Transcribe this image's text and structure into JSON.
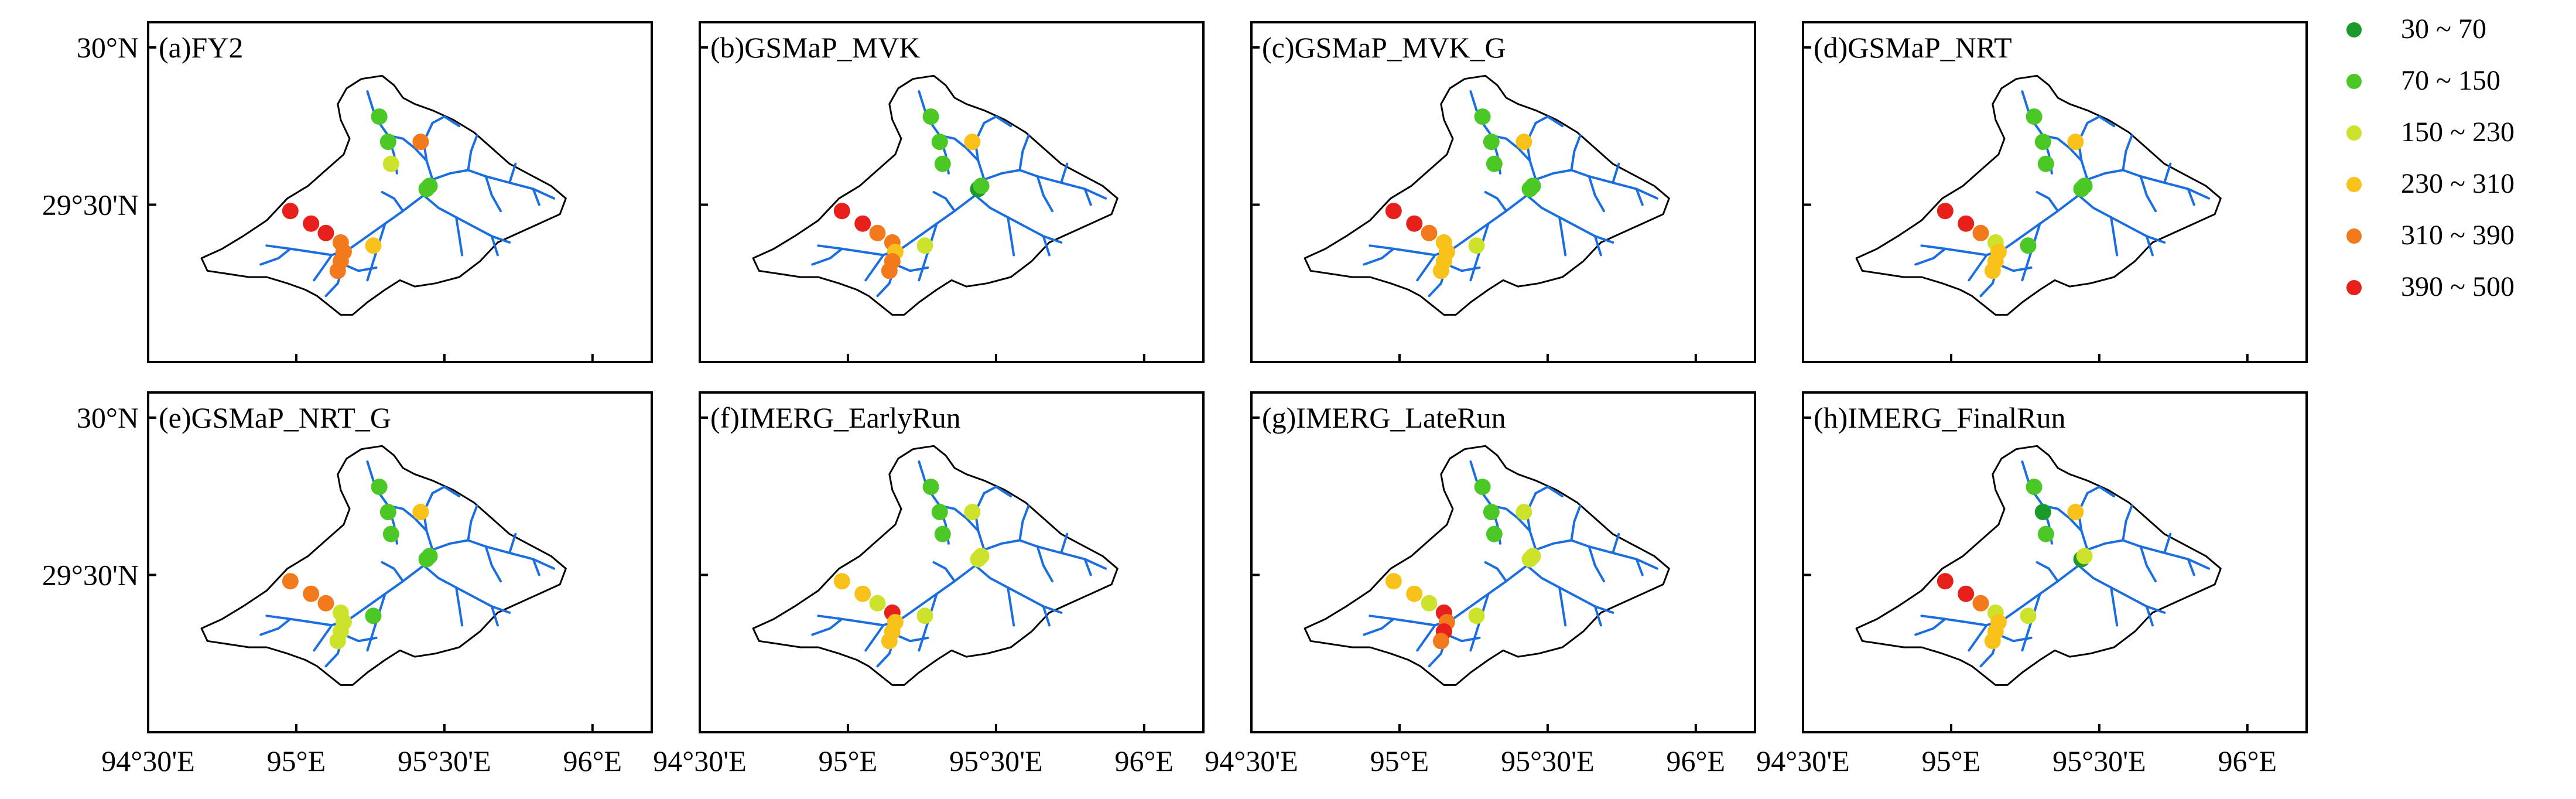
{
  "panels": [
    {
      "label": "(a)FY2",
      "dots": [
        {
          "lon": 95.28,
          "lat": 29.78,
          "cls": 1
        },
        {
          "lon": 95.31,
          "lat": 29.7,
          "cls": 1
        },
        {
          "lon": 95.42,
          "lat": 29.7,
          "cls": 4
        },
        {
          "lon": 95.32,
          "lat": 29.63,
          "cls": 2
        },
        {
          "lon": 95.44,
          "lat": 29.55,
          "cls": 1
        },
        {
          "lon": 95.45,
          "lat": 29.56,
          "cls": 1
        },
        {
          "lon": 94.98,
          "lat": 29.48,
          "cls": 5
        },
        {
          "lon": 95.05,
          "lat": 29.44,
          "cls": 5
        },
        {
          "lon": 95.1,
          "lat": 29.41,
          "cls": 5
        },
        {
          "lon": 95.15,
          "lat": 29.38,
          "cls": 4
        },
        {
          "lon": 95.16,
          "lat": 29.35,
          "cls": 4
        },
        {
          "lon": 95.15,
          "lat": 29.32,
          "cls": 4
        },
        {
          "lon": 95.14,
          "lat": 29.29,
          "cls": 4
        },
        {
          "lon": 95.26,
          "lat": 29.37,
          "cls": 3
        }
      ]
    },
    {
      "label": "(b)GSMaP_MVK",
      "dots": [
        {
          "lon": 95.28,
          "lat": 29.78,
          "cls": 1
        },
        {
          "lon": 95.31,
          "lat": 29.7,
          "cls": 1
        },
        {
          "lon": 95.42,
          "lat": 29.7,
          "cls": 3
        },
        {
          "lon": 95.32,
          "lat": 29.63,
          "cls": 1
        },
        {
          "lon": 95.44,
          "lat": 29.55,
          "cls": 0
        },
        {
          "lon": 95.45,
          "lat": 29.56,
          "cls": 1
        },
        {
          "lon": 94.98,
          "lat": 29.48,
          "cls": 5
        },
        {
          "lon": 95.05,
          "lat": 29.44,
          "cls": 5
        },
        {
          "lon": 95.1,
          "lat": 29.41,
          "cls": 4
        },
        {
          "lon": 95.15,
          "lat": 29.38,
          "cls": 4
        },
        {
          "lon": 95.16,
          "lat": 29.35,
          "cls": 3
        },
        {
          "lon": 95.15,
          "lat": 29.32,
          "cls": 4
        },
        {
          "lon": 95.14,
          "lat": 29.29,
          "cls": 4
        },
        {
          "lon": 95.26,
          "lat": 29.37,
          "cls": 2
        }
      ]
    },
    {
      "label": "(c)GSMaP_MVK_G",
      "dots": [
        {
          "lon": 95.28,
          "lat": 29.78,
          "cls": 1
        },
        {
          "lon": 95.31,
          "lat": 29.7,
          "cls": 1
        },
        {
          "lon": 95.42,
          "lat": 29.7,
          "cls": 3
        },
        {
          "lon": 95.32,
          "lat": 29.63,
          "cls": 1
        },
        {
          "lon": 95.44,
          "lat": 29.55,
          "cls": 1
        },
        {
          "lon": 95.45,
          "lat": 29.56,
          "cls": 1
        },
        {
          "lon": 94.98,
          "lat": 29.48,
          "cls": 5
        },
        {
          "lon": 95.05,
          "lat": 29.44,
          "cls": 5
        },
        {
          "lon": 95.1,
          "lat": 29.41,
          "cls": 4
        },
        {
          "lon": 95.15,
          "lat": 29.38,
          "cls": 3
        },
        {
          "lon": 95.16,
          "lat": 29.35,
          "cls": 3
        },
        {
          "lon": 95.15,
          "lat": 29.32,
          "cls": 3
        },
        {
          "lon": 95.14,
          "lat": 29.29,
          "cls": 3
        },
        {
          "lon": 95.26,
          "lat": 29.37,
          "cls": 2
        }
      ]
    },
    {
      "label": "(d)GSMaP_NRT",
      "dots": [
        {
          "lon": 95.28,
          "lat": 29.78,
          "cls": 1
        },
        {
          "lon": 95.31,
          "lat": 29.7,
          "cls": 1
        },
        {
          "lon": 95.42,
          "lat": 29.7,
          "cls": 3
        },
        {
          "lon": 95.32,
          "lat": 29.63,
          "cls": 1
        },
        {
          "lon": 95.44,
          "lat": 29.55,
          "cls": 1
        },
        {
          "lon": 95.45,
          "lat": 29.56,
          "cls": 1
        },
        {
          "lon": 94.98,
          "lat": 29.48,
          "cls": 5
        },
        {
          "lon": 95.05,
          "lat": 29.44,
          "cls": 5
        },
        {
          "lon": 95.1,
          "lat": 29.41,
          "cls": 4
        },
        {
          "lon": 95.15,
          "lat": 29.38,
          "cls": 2
        },
        {
          "lon": 95.16,
          "lat": 29.35,
          "cls": 3
        },
        {
          "lon": 95.15,
          "lat": 29.32,
          "cls": 3
        },
        {
          "lon": 95.14,
          "lat": 29.29,
          "cls": 3
        },
        {
          "lon": 95.26,
          "lat": 29.37,
          "cls": 1
        }
      ]
    },
    {
      "label": "(e)GSMaP_NRT_G",
      "dots": [
        {
          "lon": 95.28,
          "lat": 29.78,
          "cls": 1
        },
        {
          "lon": 95.31,
          "lat": 29.7,
          "cls": 1
        },
        {
          "lon": 95.42,
          "lat": 29.7,
          "cls": 3
        },
        {
          "lon": 95.32,
          "lat": 29.63,
          "cls": 1
        },
        {
          "lon": 95.44,
          "lat": 29.55,
          "cls": 1
        },
        {
          "lon": 95.45,
          "lat": 29.56,
          "cls": 1
        },
        {
          "lon": 94.98,
          "lat": 29.48,
          "cls": 4
        },
        {
          "lon": 95.05,
          "lat": 29.44,
          "cls": 4
        },
        {
          "lon": 95.1,
          "lat": 29.41,
          "cls": 4
        },
        {
          "lon": 95.15,
          "lat": 29.38,
          "cls": 2
        },
        {
          "lon": 95.16,
          "lat": 29.35,
          "cls": 2
        },
        {
          "lon": 95.15,
          "lat": 29.32,
          "cls": 2
        },
        {
          "lon": 95.14,
          "lat": 29.29,
          "cls": 2
        },
        {
          "lon": 95.26,
          "lat": 29.37,
          "cls": 1
        }
      ]
    },
    {
      "label": "(f)IMERG_EarlyRun",
      "dots": [
        {
          "lon": 95.28,
          "lat": 29.78,
          "cls": 1
        },
        {
          "lon": 95.31,
          "lat": 29.7,
          "cls": 1
        },
        {
          "lon": 95.42,
          "lat": 29.7,
          "cls": 2
        },
        {
          "lon": 95.32,
          "lat": 29.63,
          "cls": 1
        },
        {
          "lon": 95.44,
          "lat": 29.55,
          "cls": 2
        },
        {
          "lon": 95.45,
          "lat": 29.56,
          "cls": 2
        },
        {
          "lon": 94.98,
          "lat": 29.48,
          "cls": 3
        },
        {
          "lon": 95.05,
          "lat": 29.44,
          "cls": 3
        },
        {
          "lon": 95.1,
          "lat": 29.41,
          "cls": 2
        },
        {
          "lon": 95.15,
          "lat": 29.38,
          "cls": 5
        },
        {
          "lon": 95.16,
          "lat": 29.35,
          "cls": 3
        },
        {
          "lon": 95.15,
          "lat": 29.32,
          "cls": 3
        },
        {
          "lon": 95.14,
          "lat": 29.29,
          "cls": 3
        },
        {
          "lon": 95.26,
          "lat": 29.37,
          "cls": 2
        }
      ]
    },
    {
      "label": "(g)IMERG_LateRun",
      "dots": [
        {
          "lon": 95.28,
          "lat": 29.78,
          "cls": 1
        },
        {
          "lon": 95.31,
          "lat": 29.7,
          "cls": 1
        },
        {
          "lon": 95.42,
          "lat": 29.7,
          "cls": 2
        },
        {
          "lon": 95.32,
          "lat": 29.63,
          "cls": 1
        },
        {
          "lon": 95.44,
          "lat": 29.55,
          "cls": 2
        },
        {
          "lon": 95.45,
          "lat": 29.56,
          "cls": 2
        },
        {
          "lon": 94.98,
          "lat": 29.48,
          "cls": 3
        },
        {
          "lon": 95.05,
          "lat": 29.44,
          "cls": 3
        },
        {
          "lon": 95.1,
          "lat": 29.41,
          "cls": 2
        },
        {
          "lon": 95.15,
          "lat": 29.38,
          "cls": 5
        },
        {
          "lon": 95.16,
          "lat": 29.35,
          "cls": 4
        },
        {
          "lon": 95.15,
          "lat": 29.32,
          "cls": 5
        },
        {
          "lon": 95.14,
          "lat": 29.29,
          "cls": 4
        },
        {
          "lon": 95.26,
          "lat": 29.37,
          "cls": 2
        }
      ]
    },
    {
      "label": "(h)IMERG_FinalRun",
      "dots": [
        {
          "lon": 95.28,
          "lat": 29.78,
          "cls": 1
        },
        {
          "lon": 95.31,
          "lat": 29.7,
          "cls": 0
        },
        {
          "lon": 95.42,
          "lat": 29.7,
          "cls": 3
        },
        {
          "lon": 95.32,
          "lat": 29.63,
          "cls": 1
        },
        {
          "lon": 95.44,
          "lat": 29.55,
          "cls": 0
        },
        {
          "lon": 95.45,
          "lat": 29.56,
          "cls": 2
        },
        {
          "lon": 94.98,
          "lat": 29.48,
          "cls": 5
        },
        {
          "lon": 95.05,
          "lat": 29.44,
          "cls": 5
        },
        {
          "lon": 95.1,
          "lat": 29.41,
          "cls": 4
        },
        {
          "lon": 95.15,
          "lat": 29.38,
          "cls": 2
        },
        {
          "lon": 95.16,
          "lat": 29.35,
          "cls": 3
        },
        {
          "lon": 95.15,
          "lat": 29.32,
          "cls": 3
        },
        {
          "lon": 95.14,
          "lat": 29.29,
          "cls": 3
        },
        {
          "lon": 95.26,
          "lat": 29.37,
          "cls": 2
        }
      ]
    }
  ],
  "axis": {
    "lon_min": 94.5,
    "lon_max": 96.2,
    "lat_min": 29.0,
    "lat_max": 30.08,
    "y_ticks": [
      {
        "value": 30.0,
        "label": "30°N"
      },
      {
        "value": 29.5,
        "label": "29°30'N"
      }
    ],
    "x_ticks": [
      {
        "value": 94.5,
        "label": "94°30'E"
      },
      {
        "value": 95.0,
        "label": "95°E"
      },
      {
        "value": 95.5,
        "label": "95°30'E"
      },
      {
        "value": 96.0,
        "label": "96°E"
      }
    ]
  },
  "legend": {
    "classes": [
      {
        "label": "30 ~ 70",
        "color": "#1a9a2a"
      },
      {
        "label": "70 ~ 150",
        "color": "#4cc826"
      },
      {
        "label": "150 ~ 230",
        "color": "#cde22a"
      },
      {
        "label": "230 ~ 310",
        "color": "#f8c21a"
      },
      {
        "label": "310 ~ 390",
        "color": "#f27a1c"
      },
      {
        "label": "390 ~ 500",
        "color": "#e8201c"
      }
    ]
  },
  "colors": {
    "river": "#1a6ee0",
    "boundary": "#000000"
  },
  "basin": {
    "boundary": [
      [
        94.68,
        29.33
      ],
      [
        94.75,
        29.36
      ],
      [
        94.82,
        29.4
      ],
      [
        94.9,
        29.45
      ],
      [
        94.97,
        29.52
      ],
      [
        95.04,
        29.56
      ],
      [
        95.1,
        29.61
      ],
      [
        95.16,
        29.66
      ],
      [
        95.18,
        29.71
      ],
      [
        95.15,
        29.77
      ],
      [
        95.14,
        29.82
      ],
      [
        95.17,
        29.87
      ],
      [
        95.22,
        29.9
      ],
      [
        95.29,
        29.91
      ],
      [
        95.33,
        29.88
      ],
      [
        95.36,
        29.84
      ],
      [
        95.4,
        29.82
      ],
      [
        95.46,
        29.8
      ],
      [
        95.53,
        29.77
      ],
      [
        95.6,
        29.73
      ],
      [
        95.66,
        29.68
      ],
      [
        95.72,
        29.63
      ],
      [
        95.78,
        29.6
      ],
      [
        95.86,
        29.56
      ],
      [
        95.91,
        29.52
      ],
      [
        95.89,
        29.47
      ],
      [
        95.82,
        29.44
      ],
      [
        95.75,
        29.41
      ],
      [
        95.68,
        29.38
      ],
      [
        95.62,
        29.32
      ],
      [
        95.55,
        29.27
      ],
      [
        95.47,
        29.25
      ],
      [
        95.4,
        29.24
      ],
      [
        95.35,
        29.26
      ],
      [
        95.3,
        29.23
      ],
      [
        95.24,
        29.19
      ],
      [
        95.19,
        29.15
      ],
      [
        95.15,
        29.15
      ],
      [
        95.11,
        29.18
      ],
      [
        95.07,
        29.21
      ],
      [
        95.03,
        29.23
      ],
      [
        94.97,
        29.25
      ],
      [
        94.9,
        29.27
      ],
      [
        94.84,
        29.27
      ],
      [
        94.77,
        29.28
      ],
      [
        94.7,
        29.29
      ],
      [
        94.68,
        29.33
      ]
    ],
    "rivers": [
      [
        [
          95.14,
          29.25
        ],
        [
          95.16,
          29.31
        ],
        [
          95.18,
          29.36
        ],
        [
          95.24,
          29.4
        ],
        [
          95.3,
          29.44
        ],
        [
          95.36,
          29.48
        ],
        [
          95.43,
          29.53
        ],
        [
          95.46,
          29.58
        ],
        [
          95.44,
          29.64
        ],
        [
          95.43,
          29.7
        ],
        [
          95.46,
          29.76
        ]
      ],
      [
        [
          95.46,
          29.58
        ],
        [
          95.52,
          29.6
        ],
        [
          95.58,
          29.61
        ],
        [
          95.64,
          29.59
        ],
        [
          95.72,
          29.57
        ],
        [
          95.8,
          29.55
        ],
        [
          95.87,
          29.52
        ]
      ],
      [
        [
          95.44,
          29.64
        ],
        [
          95.4,
          29.68
        ],
        [
          95.36,
          29.71
        ],
        [
          95.31,
          29.72
        ],
        [
          95.28,
          29.76
        ],
        [
          95.26,
          29.8
        ],
        [
          95.24,
          29.86
        ]
      ],
      [
        [
          95.46,
          29.76
        ],
        [
          95.5,
          29.78
        ],
        [
          95.55,
          29.75
        ]
      ],
      [
        [
          95.31,
          29.72
        ],
        [
          95.33,
          29.66
        ],
        [
          95.34,
          29.6
        ]
      ],
      [
        [
          95.3,
          29.44
        ],
        [
          95.28,
          29.38
        ],
        [
          95.26,
          29.32
        ],
        [
          95.24,
          29.26
        ]
      ],
      [
        [
          95.18,
          29.36
        ],
        [
          95.12,
          29.34
        ],
        [
          95.05,
          29.35
        ],
        [
          94.98,
          29.36
        ],
        [
          94.9,
          29.37
        ]
      ],
      [
        [
          95.12,
          29.34
        ],
        [
          95.09,
          29.3
        ],
        [
          95.06,
          29.26
        ]
      ],
      [
        [
          94.98,
          29.36
        ],
        [
          94.94,
          29.33
        ],
        [
          94.88,
          29.31
        ]
      ],
      [
        [
          95.14,
          29.25
        ],
        [
          95.1,
          29.21
        ]
      ],
      [
        [
          95.16,
          29.31
        ],
        [
          95.21,
          29.29
        ],
        [
          95.27,
          29.3
        ]
      ],
      [
        [
          95.43,
          29.53
        ],
        [
          95.48,
          29.49
        ],
        [
          95.54,
          29.46
        ],
        [
          95.6,
          29.43
        ],
        [
          95.66,
          29.4
        ],
        [
          95.72,
          29.38
        ]
      ],
      [
        [
          95.54,
          29.46
        ],
        [
          95.55,
          29.4
        ],
        [
          95.56,
          29.34
        ]
      ],
      [
        [
          95.66,
          29.4
        ],
        [
          95.68,
          29.34
        ]
      ],
      [
        [
          95.58,
          29.61
        ],
        [
          95.59,
          29.67
        ],
        [
          95.61,
          29.72
        ]
      ],
      [
        [
          95.64,
          29.59
        ],
        [
          95.66,
          29.53
        ],
        [
          95.69,
          29.48
        ]
      ],
      [
        [
          95.72,
          29.57
        ],
        [
          95.74,
          29.63
        ]
      ],
      [
        [
          95.8,
          29.55
        ],
        [
          95.82,
          29.5
        ]
      ],
      [
        [
          95.36,
          29.48
        ],
        [
          95.33,
          29.52
        ],
        [
          95.29,
          29.54
        ]
      ]
    ]
  }
}
